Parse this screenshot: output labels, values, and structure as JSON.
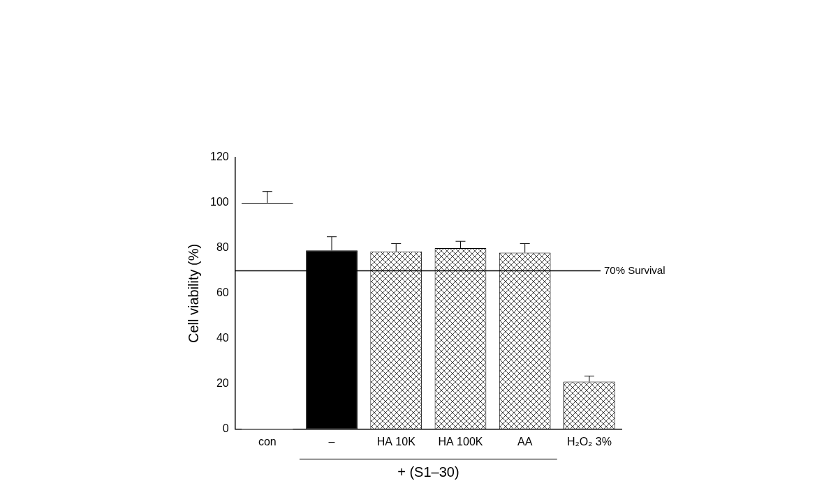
{
  "chart_data": {
    "type": "bar",
    "y_label": "Cell viability (%)",
    "categories": [
      "con",
      "–",
      "HA 10K",
      "HA 100K",
      "AA",
      "H₂O₂ 3%"
    ],
    "values": [
      100,
      79,
      78.5,
      80,
      78,
      21
    ],
    "errors": [
      5,
      6,
      3.5,
      3,
      4,
      2.5
    ],
    "colors": [
      "#ffffff",
      "#000000",
      "#1a1a1a",
      "#1a1a1a",
      "#1a1a1a",
      "#1a1a1a"
    ],
    "ylim": [
      0,
      120
    ],
    "yticks": [
      0,
      20,
      40,
      60,
      80,
      100,
      120
    ],
    "grid": false,
    "reference_line": {
      "value": 70,
      "label": "70% Survival"
    },
    "group": {
      "label": "+ (S1–30)",
      "categories": [
        "–",
        "HA 10K",
        "HA 100K",
        "AA"
      ]
    }
  }
}
